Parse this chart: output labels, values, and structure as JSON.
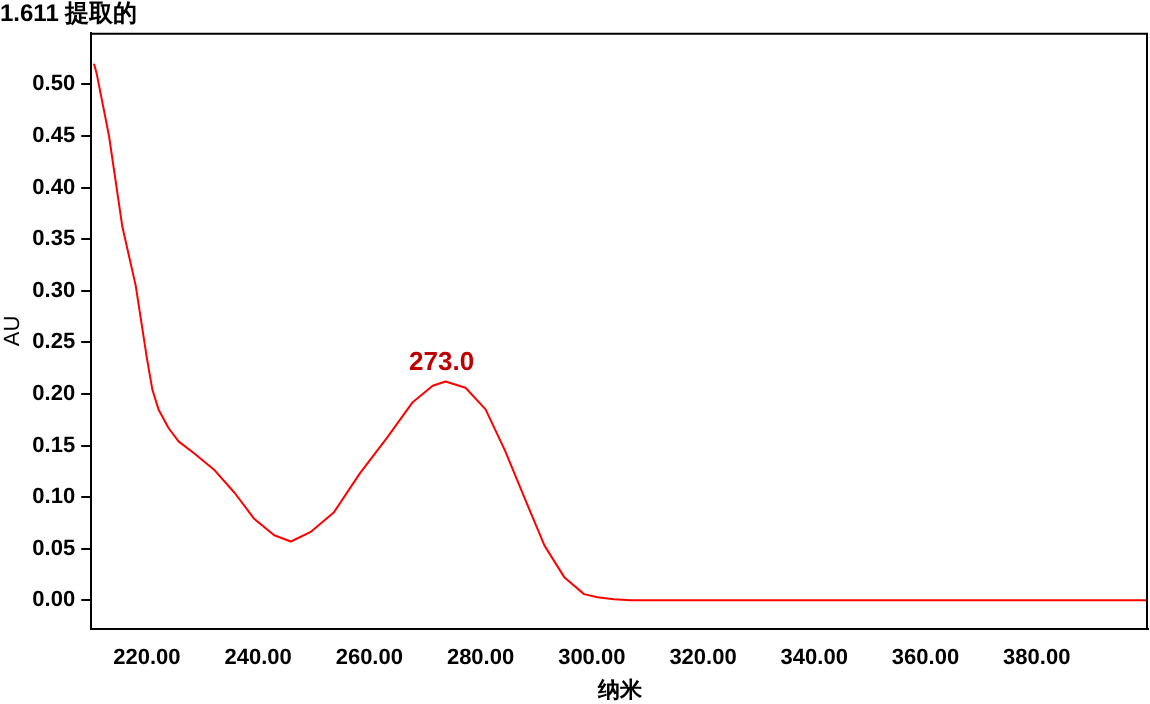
{
  "chart_data": {
    "type": "line",
    "title": "1.611 提取的",
    "xlabel": "纳米",
    "ylabel": "AU",
    "x": [
      210.5,
      211,
      213.2,
      215.6,
      218,
      220,
      221,
      222.1,
      223.9,
      225.7,
      228.6,
      232.2,
      235.8,
      239.3,
      242.9,
      245.9,
      249.4,
      253.6,
      258.3,
      263.1,
      267.8,
      271.4,
      273.7,
      277.3,
      280.9,
      284.4,
      288,
      291.5,
      295.1,
      298.6,
      301,
      304,
      307,
      320,
      350,
      400
    ],
    "series": [
      {
        "color": "#ff0000",
        "values": [
          0.52,
          0.51,
          0.45,
          0.362,
          0.305,
          0.235,
          0.204,
          0.185,
          0.167,
          0.154,
          0.142,
          0.126,
          0.104,
          0.079,
          0.063,
          0.057,
          0.066,
          0.085,
          0.123,
          0.157,
          0.192,
          0.208,
          0.212,
          0.206,
          0.185,
          0.145,
          0.098,
          0.053,
          0.022,
          0.006,
          0.003,
          0.001,
          0,
          0,
          0,
          0
        ]
      }
    ],
    "xlim": [
      210,
      400
    ],
    "xticks": [
      {
        "value": 220,
        "label": "220.00"
      },
      {
        "value": 240,
        "label": "240.00"
      },
      {
        "value": 260,
        "label": "260.00"
      },
      {
        "value": 280,
        "label": "280.00"
      },
      {
        "value": 300,
        "label": "300.00"
      },
      {
        "value": 320,
        "label": "320.00"
      },
      {
        "value": 340,
        "label": "340.00"
      },
      {
        "value": 360,
        "label": "360.00"
      },
      {
        "value": 380,
        "label": "380.00"
      }
    ],
    "ylim": [
      -0.028,
      0.55
    ],
    "yticks": [
      {
        "value": 0,
        "label": "0.00"
      },
      {
        "value": 0.05,
        "label": "0.05"
      },
      {
        "value": 0.1,
        "label": "0.10"
      },
      {
        "value": 0.15,
        "label": "0.15"
      },
      {
        "value": 0.2,
        "label": "0.20"
      },
      {
        "value": 0.25,
        "label": "0.25"
      },
      {
        "value": 0.3,
        "label": "0.30"
      },
      {
        "value": 0.35,
        "label": "0.35"
      },
      {
        "value": 0.4,
        "label": "0.40"
      },
      {
        "value": 0.45,
        "label": "0.45"
      },
      {
        "value": 0.5,
        "label": "0.50"
      }
    ],
    "annotations": [
      {
        "text": "273.0",
        "x": 273,
        "y": 0.212
      }
    ],
    "grid": false,
    "legend": false,
    "marker": "none",
    "line_style": "solid"
  }
}
